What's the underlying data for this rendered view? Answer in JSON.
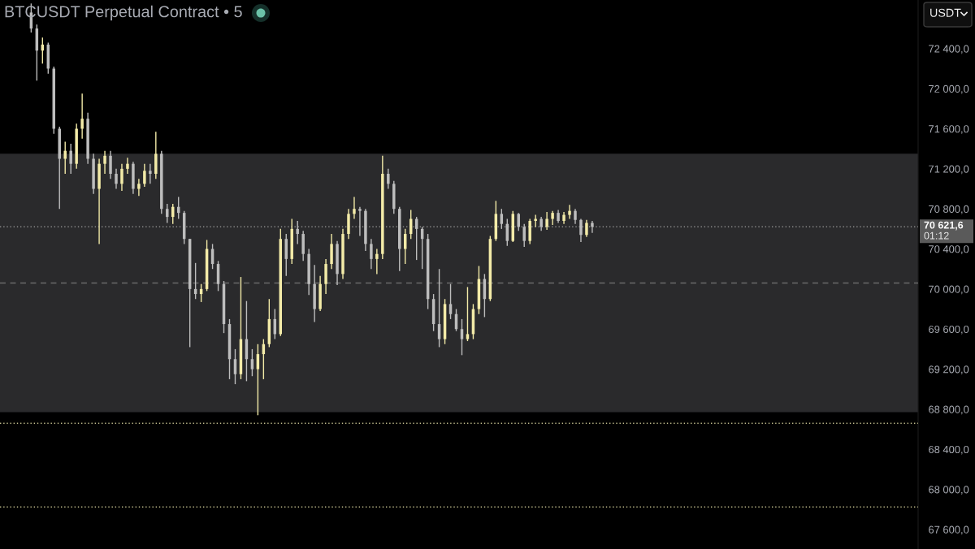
{
  "chart_data": {
    "type": "candlestick",
    "title": "BTCUSDT Perpetual Contract • 5",
    "ylabel": "USDT",
    "categories": [
      null,
      null,
      null,
      null,
      null,
      null,
      null,
      null,
      null,
      null,
      null,
      null,
      null,
      null,
      null,
      null,
      null,
      null,
      null,
      null,
      null,
      null,
      null,
      null,
      null,
      null,
      null,
      null,
      null,
      null,
      null,
      null,
      null,
      null,
      null,
      null,
      null,
      null,
      null,
      null,
      null,
      null,
      null,
      null,
      null,
      null,
      null,
      null,
      null,
      null,
      null,
      null,
      null,
      null,
      null,
      null,
      null,
      null,
      null,
      null,
      null,
      null,
      null,
      null,
      null,
      null,
      null,
      null,
      null,
      null,
      null,
      null,
      null,
      null,
      null,
      null,
      null,
      null,
      null,
      null,
      null,
      null,
      null,
      null,
      null,
      null,
      null,
      null,
      null,
      null,
      null,
      null,
      null,
      null,
      null,
      null,
      null,
      null,
      null,
      null,
      null,
      null,
      null,
      null,
      null,
      null,
      null,
      null,
      null,
      null,
      null,
      null,
      null,
      null,
      null,
      null,
      null,
      null,
      null,
      null,
      null,
      null,
      null,
      null,
      null,
      null,
      null,
      null,
      null,
      null,
      null,
      null,
      null,
      null,
      null,
      null,
      null,
      null,
      null,
      null,
      null,
      null,
      null,
      null,
      null,
      null,
      null,
      null,
      null,
      null,
      null,
      null,
      null,
      null,
      null,
      null,
      null,
      null,
      null,
      null,
      null,
      null
    ],
    "ohlc": [
      null,
      null,
      null,
      null,
      null,
      [
        72760,
        72850,
        72560,
        72600
      ],
      [
        72600,
        72640,
        72080,
        72380
      ],
      [
        72380,
        72510,
        72250,
        72440
      ],
      [
        72440,
        72460,
        72150,
        72200
      ],
      [
        72200,
        72220,
        71550,
        71600
      ],
      [
        71600,
        71620,
        70800,
        71300
      ],
      [
        71300,
        71470,
        71150,
        71380
      ],
      [
        71380,
        71450,
        71150,
        71250
      ],
      [
        71250,
        71650,
        71200,
        71600
      ],
      [
        71600,
        71950,
        71500,
        71700
      ],
      [
        71700,
        71760,
        71250,
        71300
      ],
      [
        71300,
        71350,
        70950,
        71000
      ],
      [
        71000,
        71300,
        70450,
        71250
      ],
      [
        71250,
        71380,
        71150,
        71330
      ],
      [
        71330,
        71380,
        71100,
        71150
      ],
      [
        71150,
        71200,
        71000,
        71050
      ],
      [
        71050,
        71250,
        70980,
        71200
      ],
      [
        71200,
        71310,
        71150,
        71250
      ],
      [
        71250,
        71270,
        70950,
        71000
      ],
      [
        71000,
        71100,
        70930,
        71050
      ],
      [
        71050,
        71250,
        71020,
        71180
      ],
      [
        71180,
        71250,
        71050,
        71150
      ],
      [
        71150,
        71570,
        71100,
        71350
      ],
      [
        71350,
        71380,
        70750,
        70800
      ],
      [
        70800,
        70850,
        70660,
        70720
      ],
      [
        70720,
        70850,
        70650,
        70820
      ],
      [
        70820,
        70920,
        70700,
        70760
      ],
      [
        70760,
        70780,
        70450,
        70500
      ],
      [
        70500,
        70500,
        69420,
        70000
      ],
      [
        70000,
        70260,
        69900,
        69950
      ],
      [
        69950,
        70050,
        69870,
        70000
      ],
      [
        70000,
        70490,
        69980,
        70400
      ],
      [
        70400,
        70450,
        70200,
        70250
      ],
      [
        70250,
        70280,
        69980,
        70050
      ],
      [
        70050,
        70080,
        69560,
        69650
      ],
      [
        69650,
        69700,
        69100,
        69300
      ],
      [
        69300,
        69400,
        69050,
        69150
      ],
      [
        69150,
        70120,
        69100,
        69500
      ],
      [
        69500,
        69880,
        69080,
        69300
      ],
      [
        69300,
        69400,
        69130,
        69200
      ],
      [
        69200,
        69450,
        68740,
        69350
      ],
      [
        69350,
        69500,
        69100,
        69450
      ],
      [
        69450,
        69900,
        69420,
        69700
      ],
      [
        69700,
        69800,
        69500,
        69550
      ],
      [
        69550,
        70600,
        69530,
        70500
      ],
      [
        70500,
        70550,
        70130,
        70300
      ],
      [
        70300,
        70700,
        70250,
        70600
      ],
      [
        70600,
        70680,
        70450,
        70550
      ],
      [
        70550,
        70580,
        70280,
        70350
      ],
      [
        70350,
        70400,
        69940,
        70050
      ],
      [
        70050,
        70240,
        69670,
        69800
      ],
      [
        69800,
        70130,
        69780,
        70050
      ],
      [
        70050,
        70300,
        69950,
        70250
      ],
      [
        70250,
        70550,
        70200,
        70450
      ],
      [
        70450,
        70480,
        70040,
        70150
      ],
      [
        70150,
        70600,
        70100,
        70550
      ],
      [
        70550,
        70800,
        70500,
        70750
      ],
      [
        70750,
        70920,
        70700,
        70800
      ],
      [
        70800,
        70820,
        70530,
        70780
      ],
      [
        70780,
        70800,
        70380,
        70450
      ],
      [
        70450,
        70500,
        70200,
        70300
      ],
      [
        70300,
        70400,
        70150,
        70350
      ],
      [
        70350,
        71330,
        70300,
        71150
      ],
      [
        71150,
        71200,
        71000,
        71050
      ],
      [
        71050,
        71080,
        70750,
        70800
      ],
      [
        70800,
        70820,
        70180,
        70400
      ],
      [
        70400,
        70600,
        70250,
        70550
      ],
      [
        70550,
        70790,
        70500,
        70700
      ],
      [
        70700,
        70720,
        70290,
        70600
      ],
      [
        70600,
        70620,
        70200,
        70500
      ],
      [
        70500,
        70550,
        69800,
        69900
      ],
      [
        69900,
        69950,
        69580,
        69650
      ],
      [
        69650,
        70200,
        69420,
        69500
      ],
      [
        69500,
        69900,
        69450,
        69850
      ],
      [
        69850,
        70050,
        69700,
        69750
      ],
      [
        69750,
        69800,
        69580,
        69600
      ],
      [
        69600,
        69700,
        69340,
        69500
      ],
      [
        69500,
        70020,
        69480,
        69550
      ],
      [
        69550,
        69850,
        69500,
        69800
      ],
      [
        69800,
        70230,
        69750,
        70100
      ],
      [
        70100,
        70150,
        69720,
        69900
      ],
      [
        69900,
        70530,
        69880,
        70500
      ],
      [
        70500,
        70880,
        70480,
        70750
      ],
      [
        70750,
        70800,
        70600,
        70650
      ],
      [
        70650,
        70700,
        70430,
        70480
      ],
      [
        70480,
        70780,
        70470,
        70750
      ],
      [
        70750,
        70760,
        70580,
        70620
      ],
      [
        70620,
        70650,
        70420,
        70480
      ],
      [
        70480,
        70700,
        70450,
        70680
      ],
      [
        70680,
        70740,
        70620,
        70700
      ],
      [
        70700,
        70720,
        70580,
        70620
      ],
      [
        70620,
        70770,
        70590,
        70700
      ],
      [
        70700,
        70780,
        70640,
        70760
      ],
      [
        70760,
        70790,
        70660,
        70680
      ],
      [
        70680,
        70770,
        70650,
        70740
      ],
      [
        70740,
        70840,
        70700,
        70780
      ],
      [
        70780,
        70800,
        70650,
        70690
      ],
      [
        70690,
        70700,
        70470,
        70540
      ],
      [
        70540,
        70690,
        70520,
        70660
      ],
      [
        70660,
        70680,
        70560,
        70621.6
      ],
      null,
      null,
      null,
      null,
      null,
      null,
      null,
      null,
      null,
      null,
      null,
      null,
      null,
      null,
      null,
      null,
      null,
      null,
      null,
      null,
      null,
      null,
      null,
      null,
      null,
      null,
      null,
      null,
      null,
      null,
      null,
      null,
      null,
      null,
      null,
      null,
      null,
      null,
      null,
      null,
      null,
      null,
      null,
      null,
      null,
      null,
      null,
      null,
      null,
      null,
      null,
      null,
      null,
      null,
      null,
      null,
      null
    ],
    "colors": [
      null,
      null,
      null,
      null,
      null,
      "#bdbdbd",
      "#bdbdbd",
      "#f3eba8",
      "#bdbdbd",
      "#bdbdbd",
      "#bdbdbd",
      "#f3eba8",
      "#bdbdbd",
      "#f3eba8",
      "#f3eba8",
      "#bdbdbd",
      "#bdbdbd",
      "#f3eba8",
      "#f3eba8",
      "#bdbdbd",
      "#bdbdbd",
      "#f3eba8",
      "#f3eba8",
      "#bdbdbd",
      "#f3eba8",
      "#f3eba8",
      "#bdbdbd",
      "#f3eba8",
      "#bdbdbd",
      "#bdbdbd",
      "#f3eba8",
      "#bdbdbd",
      "#bdbdbd",
      "#bdbdbd",
      "#bdbdbd",
      "#f3eba8",
      "#f3eba8",
      "#bdbdbd",
      "#bdbdbd",
      "#bdbdbd",
      "#bdbdbd",
      "#bdbdbd",
      "#f3eba8",
      "#bdbdbd",
      "#bdbdbd",
      "#f3eba8",
      "#f3eba8",
      "#f3eba8",
      "#bdbdbd",
      "#f3eba8",
      "#bdbdbd",
      "#f3eba8",
      "#bdbdbd",
      "#bdbdbd",
      "#bdbdbd",
      "#bdbdbd",
      "#f3eba8",
      "#f3eba8",
      "#f3eba8",
      "#bdbdbd",
      "#f3eba8",
      "#f3eba8",
      "#f3eba8",
      "#bdbdbd",
      "#bdbdbd",
      "#bdbdbd",
      "#f3eba8",
      "#f3eba8",
      "#bdbdbd",
      "#bdbdbd",
      "#bdbdbd",
      "#f3eba8",
      "#f3eba8",
      "#bdbdbd",
      "#bdbdbd",
      "#bdbdbd",
      "#bdbdbd",
      "#bdbdbd",
      "#f3eba8",
      "#bdbdbd",
      "#bdbdbd",
      "#bdbdbd",
      "#f3eba8",
      "#f3eba8",
      "#f3eba8",
      "#bdbdbd",
      "#f3eba8",
      "#f3eba8",
      "#bdbdbd",
      "#bdbdbd",
      "#f3eba8",
      "#bdbdbd",
      "#bdbdbd",
      "#f3eba8",
      "#f3eba8",
      "#bdbdbd",
      "#f3eba8",
      "#f3eba8",
      "#bdbdbd",
      "#f3eba8",
      "#f3eba8",
      "#bdbdbd",
      "#bdbdbd",
      "#f3eba8",
      "#bdbdbd",
      null,
      null,
      null,
      null,
      null,
      null,
      null,
      null,
      null,
      null,
      null,
      null,
      null,
      null,
      null,
      null,
      null,
      null,
      null,
      null,
      null,
      null,
      null,
      null,
      null,
      null,
      null,
      null,
      null,
      null,
      null,
      null,
      null,
      null,
      null,
      null,
      null,
      null,
      null,
      null,
      null,
      null,
      null,
      null,
      null,
      null,
      null,
      null,
      null,
      null,
      null,
      null,
      null,
      null,
      null,
      null,
      null
    ],
    "ylim": [
      67405,
      72885
    ],
    "yticks": [
      {
        "value": 67600,
        "label": "67 600,0"
      },
      {
        "value": 68000,
        "label": "68 000,0"
      },
      {
        "value": 68400,
        "label": "68 400,0"
      },
      {
        "value": 68800,
        "label": "68 800,0"
      },
      {
        "value": 69200,
        "label": "69 200,0"
      },
      {
        "value": 69600,
        "label": "69 600,0"
      },
      {
        "value": 70000,
        "label": "70 000,0"
      },
      {
        "value": 70400,
        "label": "70 400,0"
      },
      {
        "value": 70800,
        "label": "70 800,0"
      },
      {
        "value": 71200,
        "label": "71 200,0"
      },
      {
        "value": 71600,
        "label": "71 600,0"
      },
      {
        "value": 72000,
        "label": "72 000,0"
      },
      {
        "value": 72400,
        "label": "72 400,0"
      }
    ],
    "tick_labels": "y",
    "bands": [
      {
        "axis": "y",
        "from": 68770,
        "to": 71350,
        "color": "#2a2a2c"
      }
    ],
    "ref_lines": [
      {
        "axis": "y",
        "value": 70621.6,
        "label": "70 621,6",
        "color": "#8a8a8a",
        "line_style": "dotted"
      },
      {
        "axis": "y",
        "value": 70060,
        "color": "#6a6a6a",
        "line_style": "dashed"
      },
      {
        "axis": "y",
        "value": 68660,
        "color": "#bdb98a",
        "line_style": "dotted"
      },
      {
        "axis": "y",
        "value": 67825,
        "color": "#bdb98a",
        "line_style": "dotted"
      }
    ],
    "annotations": [
      "01:12"
    ]
  }
}
